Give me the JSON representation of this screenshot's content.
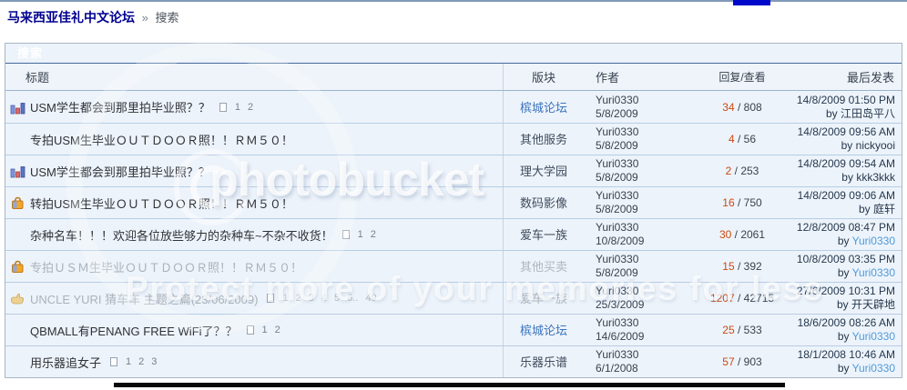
{
  "browser": {
    "top_accent_color": "#0008cc"
  },
  "breadcrumb": {
    "site_title": "马来西亚佳礼中文论坛",
    "separator": "»",
    "current": "搜索"
  },
  "panel_title": "搜索",
  "labels": {
    "by": "by",
    "replies_views_separator": "/"
  },
  "columns": {
    "title": "标题",
    "forum": "版块",
    "author": "作者",
    "replies_views": "回复/查看",
    "last_post": "最后发表"
  },
  "rows": [
    {
      "icon": "poll-icon",
      "title": "USM学生都会到那里拍毕业照？？",
      "title_muted": false,
      "pages": [
        "1",
        "2"
      ],
      "forum": "槟城论坛",
      "forum_style": "blue",
      "author": "Yuri0330",
      "date": "5/8/2009",
      "replies": "34",
      "views": "808",
      "last_date": "14/8/2009 01:50 PM",
      "last_user": "江田岛平八",
      "last_user_style": "dark"
    },
    {
      "icon": null,
      "title": "专拍USM生毕业ＯＵＴＤＯＯＲ照！！ＲＭ５０！",
      "title_muted": false,
      "pages": null,
      "forum": "其他服务",
      "forum_style": "dark",
      "author": "Yuri0330",
      "date": "5/8/2009",
      "replies": "4",
      "views": "56",
      "last_date": "14/8/2009 09:56 AM",
      "last_user": "nickyooi",
      "last_user_style": "dark"
    },
    {
      "icon": "poll-icon",
      "title": "USM学生都会到那里拍毕业照？？",
      "title_muted": false,
      "pages": null,
      "forum": "理大学园",
      "forum_style": "dark",
      "author": "Yuri0330",
      "date": "5/8/2009",
      "replies": "2",
      "views": "253",
      "last_date": "14/8/2009 09:54 AM",
      "last_user": "kkk3kkk",
      "last_user_style": "dark"
    },
    {
      "icon": "bag-icon",
      "title": "转拍USM生毕业ＯＵＴＤＯＯＲ照！！ＲＭ５０！",
      "title_muted": false,
      "pages": null,
      "forum": "数码影像",
      "forum_style": "dark",
      "author": "Yuri0330",
      "date": "5/8/2009",
      "replies": "16",
      "views": "750",
      "last_date": "14/8/2009 09:06 AM",
      "last_user": "庭轩",
      "last_user_style": "dark"
    },
    {
      "icon": null,
      "title": "杂种名车！！！欢迎各位放些够力的杂种车~不杂不收货！",
      "title_muted": false,
      "pages": [
        "1",
        "2"
      ],
      "forum": "爱车一族",
      "forum_style": "dark",
      "author": "Yuri0330",
      "date": "10/8/2009",
      "replies": "30",
      "views": "2061",
      "last_date": "12/8/2009 08:47 PM",
      "last_user": "Yuri0330",
      "last_user_style": "blue"
    },
    {
      "icon": "bag-icon",
      "title": "专拍ＵＳＭ生毕业ＯＵＴＤＯＯＲ照！！ＲＭ５０！",
      "title_muted": true,
      "pages": null,
      "forum": "其他买卖",
      "forum_style": "muted",
      "author": "Yuri0330",
      "date": "5/8/2009",
      "replies": "15",
      "views": "392",
      "last_date": "10/8/2009 03:35 PM",
      "last_user": "Yuri0330",
      "last_user_style": "blue"
    },
    {
      "icon": "hand-icon",
      "title": "UNCLE YURI 猜车车 主题之篇(23/06/2009)",
      "title_muted": true,
      "pages": [
        "1",
        "2",
        "3",
        "4",
        "5",
        "6..",
        "49"
      ],
      "forum": "爱车一族",
      "forum_style": "muted",
      "author": "Yuri0330",
      "date": "25/3/2009",
      "replies": "1207",
      "views": "42715",
      "last_date": "27/6/2009 10:31 PM",
      "last_user": "开天辟地",
      "last_user_style": "dark"
    },
    {
      "icon": null,
      "title": "QBMALL有PENANG FREE WiFi了？？",
      "title_muted": false,
      "pages": [
        "1",
        "2"
      ],
      "forum": "槟城论坛",
      "forum_style": "blue",
      "author": "Yuri0330",
      "date": "14/6/2009",
      "replies": "25",
      "views": "533",
      "last_date": "18/6/2009 08:26 AM",
      "last_user": "Yuri0330",
      "last_user_style": "blue"
    },
    {
      "icon": null,
      "title": "用乐器追女子",
      "title_muted": false,
      "pages": [
        "1",
        "2",
        "3"
      ],
      "forum": "乐器乐谱",
      "forum_style": "dark",
      "author": "Yuri0330",
      "date": "6/1/2008",
      "replies": "57",
      "views": "903",
      "last_date": "18/1/2008 10:46 AM",
      "last_user": "Yuri0330",
      "last_user_style": "blue"
    }
  ],
  "watermark": {
    "brand": "photobucket",
    "tagline": "Protect more of your memories for less"
  },
  "colors": {
    "reply_count": "#cb4a12",
    "forum_link_blue": "#3b74be",
    "user_link_blue": "#4e9bd9",
    "muted_text": "#adb4bc",
    "panel_header_top": "#8aabd5",
    "panel_header_bottom": "#4f76a8",
    "row_background": "#edf3fa"
  }
}
